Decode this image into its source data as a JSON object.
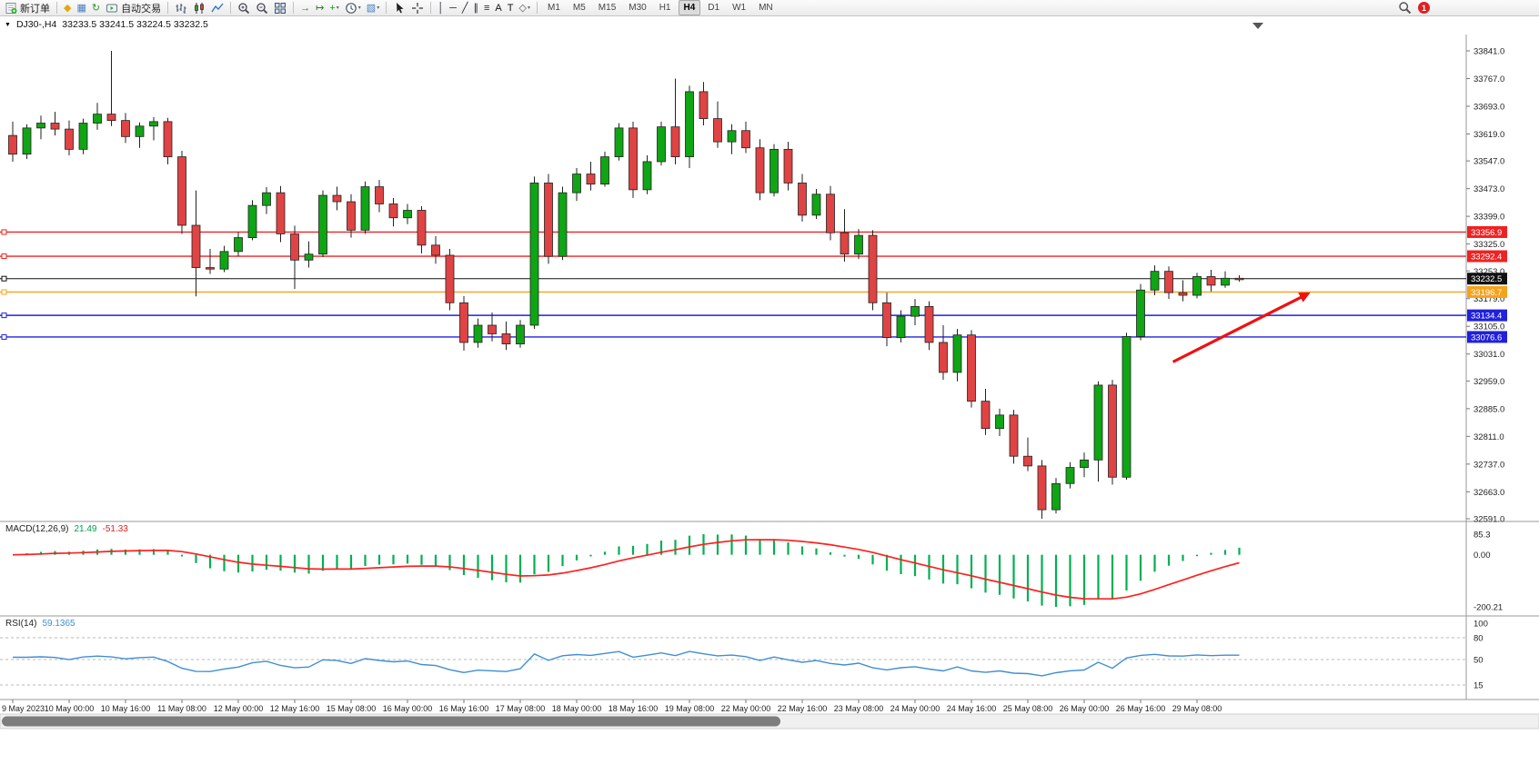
{
  "toolbar": {
    "items": [
      {
        "name": "new-order-button",
        "type": "labeled",
        "shape": "neworder",
        "icon": "new-order-icon",
        "label": "新订单"
      },
      {
        "type": "sep"
      },
      {
        "name": "market-watch-button",
        "type": "icon",
        "icon": "market-watch-icon",
        "glyph": "◆",
        "color": "#e0a810"
      },
      {
        "name": "data-window-button",
        "type": "icon",
        "icon": "data-window-icon",
        "glyph": "▦",
        "color": "#4a7dbd"
      },
      {
        "name": "navigator-button",
        "type": "icon",
        "icon": "navigator-refresh-icon",
        "glyph": "↻",
        "color": "#2a9a2a"
      },
      {
        "name": "auto-trading-button",
        "type": "labeled",
        "shape": "autotrade",
        "icon": "auto-trading-icon",
        "label": "自动交易"
      },
      {
        "type": "sep"
      },
      {
        "name": "bar-chart-button",
        "type": "shape",
        "shape": "bars",
        "icon": "bar-chart-icon"
      },
      {
        "name": "candlestick-chart-button",
        "type": "shape",
        "shape": "candles",
        "icon": "candlestick-chart-icon"
      },
      {
        "name": "line-chart-button",
        "type": "shape",
        "shape": "linechart",
        "icon": "line-chart-icon"
      },
      {
        "type": "sep"
      },
      {
        "name": "zoom-in-button",
        "type": "shape",
        "shape": "zoomin",
        "icon": "zoom-in-icon"
      },
      {
        "name": "zoom-out-button",
        "type": "shape",
        "shape": "zoomout",
        "icon": "zoom-out-icon"
      },
      {
        "name": "tile-windows-button",
        "type": "shape",
        "shape": "grid",
        "icon": "tile-windows-icon"
      },
      {
        "type": "sep"
      },
      {
        "name": "auto-scroll-button",
        "type": "icon",
        "icon": "auto-scroll-icon",
        "glyph": "→",
        "color": "#2a7a2a"
      },
      {
        "name": "chart-shift-button",
        "type": "icon",
        "icon": "chart-shift-icon",
        "glyph": "↦",
        "color": "#2a7a2a"
      },
      {
        "name": "indicators-button",
        "type": "icon",
        "icon": "indicators-plus-icon",
        "glyph": "+",
        "color": "#18a018",
        "dropdown": true
      },
      {
        "name": "periods-button",
        "type": "shape",
        "shape": "clock",
        "icon": "clock-icon",
        "dropdown": true
      },
      {
        "name": "templates-button",
        "type": "icon",
        "icon": "template-icon",
        "glyph": "▧",
        "color": "#4a7dbd",
        "dropdown": true
      },
      {
        "type": "sep"
      },
      {
        "name": "cursor-button",
        "type": "shape",
        "shape": "cursor",
        "icon": "cursor-arrow-icon"
      },
      {
        "name": "crosshair-button",
        "type": "shape",
        "shape": "crosshair",
        "icon": "crosshair-icon"
      },
      {
        "type": "sep"
      },
      {
        "name": "vertical-line-button",
        "type": "icon",
        "icon": "vertical-line-icon",
        "glyph": "│",
        "color": "#223"
      },
      {
        "name": "horizontal-line-button",
        "type": "icon",
        "icon": "horizontal-line-icon",
        "glyph": "─",
        "color": "#223"
      },
      {
        "name": "trendline-button",
        "type": "icon",
        "icon": "trendline-icon",
        "glyph": "╱",
        "color": "#223"
      },
      {
        "name": "channel-button",
        "type": "icon",
        "icon": "equidistant-channel-icon",
        "glyph": "∥",
        "color": "#223"
      },
      {
        "name": "fibonacci-button",
        "type": "icon",
        "icon": "fibonacci-icon",
        "glyph": "≡",
        "color": "#223"
      },
      {
        "name": "text-tool-button",
        "type": "icon",
        "icon": "text-tool-icon",
        "glyph": "A",
        "color": "#111"
      },
      {
        "name": "label-tool-button",
        "type": "icon",
        "icon": "text-label-icon",
        "glyph": "T",
        "color": "#111"
      },
      {
        "name": "shapes-button",
        "type": "icon",
        "icon": "arrows-shapes-icon",
        "glyph": "◇",
        "color": "#555",
        "dropdown": true
      },
      {
        "type": "sep"
      },
      {
        "name": "timeframe-m1-button",
        "type": "tf",
        "label": "M1"
      },
      {
        "name": "timeframe-m5-button",
        "type": "tf",
        "label": "M5"
      },
      {
        "name": "timeframe-m15-button",
        "type": "tf",
        "label": "M15"
      },
      {
        "name": "timeframe-m30-button",
        "type": "tf",
        "label": "M30"
      },
      {
        "name": "timeframe-h1-button",
        "type": "tf",
        "label": "H1"
      },
      {
        "name": "timeframe-h4-button",
        "type": "tf",
        "label": "H4",
        "active": true
      },
      {
        "name": "timeframe-d1-button",
        "type": "tf",
        "label": "D1"
      },
      {
        "name": "timeframe-w1-button",
        "type": "tf",
        "label": "W1"
      },
      {
        "name": "timeframe-mn-button",
        "type": "tf",
        "label": "MN"
      },
      {
        "type": "spacer"
      },
      {
        "name": "toolbar-search-button",
        "type": "shape",
        "shape": "magnifier",
        "icon": "search-icon"
      },
      {
        "name": "notification-badge",
        "type": "badge",
        "label": "1",
        "color": "#e02020"
      },
      {
        "type": "rightpad"
      }
    ]
  },
  "chart_header": {
    "collapse_icon": "▼",
    "symbol": "DJ30-,H4",
    "ohlc": "33233.5 33241.5 33224.5 33232.5"
  },
  "chart_data": {
    "type": "candlestick",
    "symbol": "DJ30-",
    "period": "H4",
    "ohlc_display": {
      "open": "33233.5",
      "high": "33241.5",
      "low": "33224.5",
      "close": "33232.5"
    },
    "colors": {
      "bull": "#0fa515",
      "bear": "#e04343",
      "outline": "#222222",
      "bg": "#ffffff"
    },
    "price_axis": {
      "max": 33841.0,
      "min": 32591.0,
      "ticks": [
        33841.0,
        33767.0,
        33693.0,
        33619.0,
        33547.0,
        33473.0,
        33399.0,
        33325.0,
        33253.0,
        33179.0,
        33105.0,
        33031.0,
        32959.0,
        32885.0,
        32811.0,
        32737.0,
        32663.0,
        32591.0
      ]
    },
    "candles": [
      [
        33615,
        33652,
        33545,
        33565
      ],
      [
        33565,
        33645,
        33552,
        33635
      ],
      [
        33635,
        33668,
        33605,
        33648
      ],
      [
        33648,
        33678,
        33615,
        33632
      ],
      [
        33632,
        33655,
        33562,
        33578
      ],
      [
        33578,
        33660,
        33565,
        33648
      ],
      [
        33648,
        33702,
        33630,
        33672
      ],
      [
        33672,
        33841,
        33640,
        33655
      ],
      [
        33655,
        33675,
        33595,
        33612
      ],
      [
        33612,
        33650,
        33582,
        33640
      ],
      [
        33640,
        33664,
        33602,
        33652
      ],
      [
        33652,
        33662,
        33538,
        33558
      ],
      [
        33558,
        33574,
        33352,
        33375
      ],
      [
        33375,
        33468,
        33185,
        33262
      ],
      [
        33262,
        33312,
        33245,
        33258
      ],
      [
        33258,
        33320,
        33250,
        33305
      ],
      [
        33305,
        33357,
        33292,
        33342
      ],
      [
        33342,
        33442,
        33335,
        33428
      ],
      [
        33428,
        33477,
        33405,
        33462
      ],
      [
        33462,
        33480,
        33330,
        33352
      ],
      [
        33352,
        33374,
        33205,
        33282
      ],
      [
        33282,
        33332,
        33262,
        33298
      ],
      [
        33298,
        33468,
        33290,
        33455
      ],
      [
        33455,
        33478,
        33415,
        33438
      ],
      [
        33438,
        33458,
        33342,
        33362
      ],
      [
        33362,
        33492,
        33352,
        33478
      ],
      [
        33478,
        33496,
        33410,
        33432
      ],
      [
        33432,
        33448,
        33372,
        33395
      ],
      [
        33395,
        33432,
        33378,
        33415
      ],
      [
        33415,
        33426,
        33300,
        33322
      ],
      [
        33322,
        33346,
        33272,
        33295
      ],
      [
        33295,
        33312,
        33148,
        33168
      ],
      [
        33168,
        33186,
        33040,
        33062
      ],
      [
        33062,
        33126,
        33048,
        33108
      ],
      [
        33108,
        33142,
        33065,
        33085
      ],
      [
        33085,
        33118,
        33042,
        33058
      ],
      [
        33058,
        33122,
        33048,
        33108
      ],
      [
        33108,
        33505,
        33098,
        33488
      ],
      [
        33488,
        33512,
        33272,
        33292
      ],
      [
        33292,
        33478,
        33282,
        33462
      ],
      [
        33462,
        33528,
        33440,
        33512
      ],
      [
        33512,
        33545,
        33468,
        33485
      ],
      [
        33485,
        33572,
        33478,
        33558
      ],
      [
        33558,
        33648,
        33548,
        33635
      ],
      [
        33635,
        33652,
        33448,
        33470
      ],
      [
        33470,
        33562,
        33458,
        33545
      ],
      [
        33545,
        33652,
        33535,
        33638
      ],
      [
        33638,
        33767,
        33538,
        33558
      ],
      [
        33558,
        33748,
        33528,
        33732
      ],
      [
        33732,
        33758,
        33642,
        33660
      ],
      [
        33660,
        33706,
        33582,
        33598
      ],
      [
        33598,
        33645,
        33565,
        33628
      ],
      [
        33628,
        33652,
        33568,
        33582
      ],
      [
        33582,
        33605,
        33442,
        33462
      ],
      [
        33462,
        33592,
        33452,
        33578
      ],
      [
        33578,
        33598,
        33468,
        33488
      ],
      [
        33488,
        33512,
        33385,
        33402
      ],
      [
        33402,
        33472,
        33392,
        33458
      ],
      [
        33458,
        33480,
        33335,
        33355
      ],
      [
        33355,
        33418,
        33278,
        33298
      ],
      [
        33298,
        33365,
        33285,
        33348
      ],
      [
        33348,
        33362,
        33148,
        33168
      ],
      [
        33168,
        33195,
        33052,
        33075
      ],
      [
        33075,
        33148,
        33062,
        33132
      ],
      [
        33132,
        33178,
        33108,
        33158
      ],
      [
        33158,
        33172,
        33042,
        33062
      ],
      [
        33062,
        33108,
        32962,
        32982
      ],
      [
        32982,
        33098,
        32958,
        33082
      ],
      [
        33082,
        33095,
        32888,
        32905
      ],
      [
        32905,
        32938,
        32815,
        32832
      ],
      [
        32832,
        32885,
        32812,
        32868
      ],
      [
        32868,
        32882,
        32738,
        32758
      ],
      [
        32758,
        32808,
        32718,
        32732
      ],
      [
        32732,
        32748,
        32591,
        32615
      ],
      [
        32615,
        32700,
        32605,
        32685
      ],
      [
        32685,
        32742,
        32672,
        32728
      ],
      [
        32728,
        32768,
        32702,
        32748
      ],
      [
        32748,
        32958,
        32690,
        32948
      ],
      [
        32948,
        32962,
        32682,
        32702
      ],
      [
        32702,
        33088,
        32695,
        33078
      ],
      [
        33078,
        33218,
        33068,
        33202
      ],
      [
        33202,
        33268,
        33188,
        33252
      ],
      [
        33252,
        33265,
        33178,
        33195
      ],
      [
        33195,
        33228,
        33172,
        33188
      ],
      [
        33188,
        33248,
        33180,
        33238
      ],
      [
        33238,
        33256,
        33198,
        33215
      ],
      [
        33215,
        33252,
        33208,
        33233.5
      ],
      [
        33233.5,
        33241.5,
        33224.5,
        33232.5
      ]
    ],
    "time_labels": [
      "9 May 2023",
      "10 May 00:00",
      "10 May 16:00",
      "11 May 08:00",
      "12 May 00:00",
      "12 May 16:00",
      "15 May 08:00",
      "16 May 00:00",
      "16 May 16:00",
      "17 May 08:00",
      "18 May 00:00",
      "18 May 16:00",
      "19 May 08:00",
      "22 May 00:00",
      "22 May 16:00",
      "23 May 08:00",
      "24 May 00:00",
      "24 May 16:00",
      "25 May 08:00",
      "26 May 00:00",
      "26 May 16:00",
      "29 May 08:00"
    ],
    "bars_per_label": 4,
    "hlines": [
      {
        "value": 33356.9,
        "color": "#ee2222",
        "label": "33356.9"
      },
      {
        "value": 33292.4,
        "color": "#ee2222",
        "label": "33292.4"
      },
      {
        "value": 33232.5,
        "color": "#111111",
        "label": "33232.5"
      },
      {
        "value": 33196.7,
        "color": "#f7a21b",
        "label": "33196.7"
      },
      {
        "value": 33134.4,
        "color": "#2020dd",
        "label": "33134.4"
      },
      {
        "value": 33076.6,
        "color": "#2020dd",
        "label": "33076.6"
      }
    ],
    "arrow": {
      "from_xfrac": 0.8,
      "from_price": 33010,
      "to_xfrac": 0.892,
      "to_price": 33192,
      "color": "#ee1111"
    },
    "indicators": [
      {
        "name": "MACD",
        "label": "MACD(12,26,9)",
        "values": [
          "21.49",
          "-51.33"
        ],
        "axis_labels": [
          "85.3",
          "0.00",
          "-200.21"
        ],
        "histogram_color": "#00b050",
        "signal_color": "#ff2020"
      },
      {
        "name": "RSI",
        "label": "RSI(14)",
        "values": [
          "59.1365"
        ],
        "axis_labels": [
          "100",
          "80",
          "50",
          "15"
        ],
        "levels": [
          80,
          50,
          15
        ],
        "line_color": "#3f8fd2",
        "range": [
          0,
          100
        ]
      }
    ]
  }
}
